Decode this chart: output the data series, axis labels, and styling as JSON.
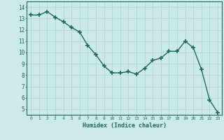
{
  "x": [
    0,
    1,
    2,
    3,
    4,
    5,
    6,
    7,
    8,
    9,
    10,
    11,
    12,
    13,
    14,
    15,
    16,
    17,
    18,
    19,
    20,
    21,
    22,
    23
  ],
  "y": [
    13.3,
    13.3,
    13.6,
    13.1,
    12.7,
    12.2,
    11.8,
    10.6,
    9.8,
    8.8,
    8.2,
    8.2,
    8.3,
    8.1,
    8.6,
    9.3,
    9.5,
    10.1,
    10.1,
    11.0,
    10.4,
    8.5,
    5.8,
    4.7
  ],
  "line_color": "#1a6b5a",
  "marker": "+",
  "marker_size": 4,
  "marker_lw": 1.2,
  "bg_color": "#cceae8",
  "grid_color": "#b0d4d1",
  "xlabel": "Humidex (Indice chaleur)",
  "ylim": [
    4.5,
    14.5
  ],
  "xlim": [
    -0.5,
    23.5
  ],
  "yticks": [
    5,
    6,
    7,
    8,
    9,
    10,
    11,
    12,
    13,
    14
  ],
  "xticks": [
    0,
    1,
    2,
    3,
    4,
    5,
    6,
    7,
    8,
    9,
    10,
    11,
    12,
    13,
    14,
    15,
    16,
    17,
    18,
    19,
    20,
    21,
    22,
    23
  ],
  "tick_color": "#1a6b5a",
  "label_color": "#1a6b5a",
  "line_width": 1.0
}
